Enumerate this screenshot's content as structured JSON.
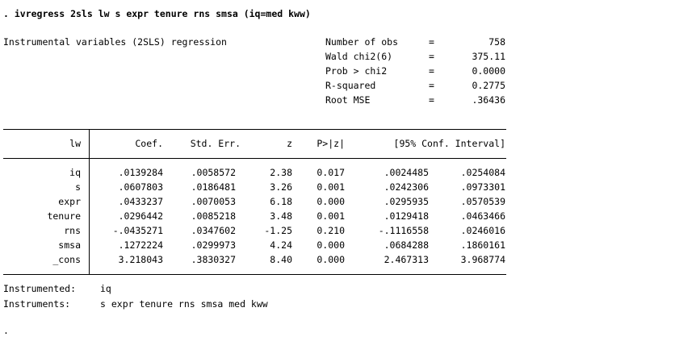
{
  "command": ". ivregress 2sls lw s expr tenure rns smsa (iq=med kww)",
  "title": "Instrumental variables (2SLS) regression",
  "stats": [
    {
      "label": "Number of obs",
      "eq": "=",
      "value": "758"
    },
    {
      "label": "Wald chi2(6)",
      "eq": "=",
      "value": "375.11"
    },
    {
      "label": "Prob > chi2",
      "eq": "=",
      "value": "0.0000"
    },
    {
      "label": "R-squared",
      "eq": "=",
      "value": "0.2775"
    },
    {
      "label": "Root MSE",
      "eq": "=",
      "value": ".36436"
    }
  ],
  "table": {
    "depvar": "lw",
    "headers": {
      "coef": "Coef.",
      "se": "Std. Err.",
      "z": "z",
      "p": "P>|z|",
      "ci": "[95% Conf. Interval]"
    },
    "rows": [
      {
        "var": "iq",
        "coef": ".0139284",
        "se": ".0058572",
        "z": "2.38",
        "p": "0.017",
        "lo": ".0024485",
        "hi": ".0254084"
      },
      {
        "var": "s",
        "coef": ".0607803",
        "se": ".0186481",
        "z": "3.26",
        "p": "0.001",
        "lo": ".0242306",
        "hi": ".0973301"
      },
      {
        "var": "expr",
        "coef": ".0433237",
        "se": ".0070053",
        "z": "6.18",
        "p": "0.000",
        "lo": ".0295935",
        "hi": ".0570539"
      },
      {
        "var": "tenure",
        "coef": ".0296442",
        "se": ".0085218",
        "z": "3.48",
        "p": "0.001",
        "lo": ".0129418",
        "hi": ".0463466"
      },
      {
        "var": "rns",
        "coef": "-.0435271",
        "se": ".0347602",
        "z": "-1.25",
        "p": "0.210",
        "lo": "-.1116558",
        "hi": ".0246016"
      },
      {
        "var": "smsa",
        "coef": ".1272224",
        "se": ".0299973",
        "z": "4.24",
        "p": "0.000",
        "lo": ".0684288",
        "hi": ".1860161"
      },
      {
        "var": "_cons",
        "coef": "3.218043",
        "se": ".3830327",
        "z": "8.40",
        "p": "0.000",
        "lo": "2.467313",
        "hi": "3.968774"
      }
    ]
  },
  "instrumented": {
    "label": "Instrumented:",
    "value": "iq"
  },
  "instruments": {
    "label": "Instruments:",
    "value": "s expr tenure rns smsa med kww"
  },
  "prompt": "."
}
